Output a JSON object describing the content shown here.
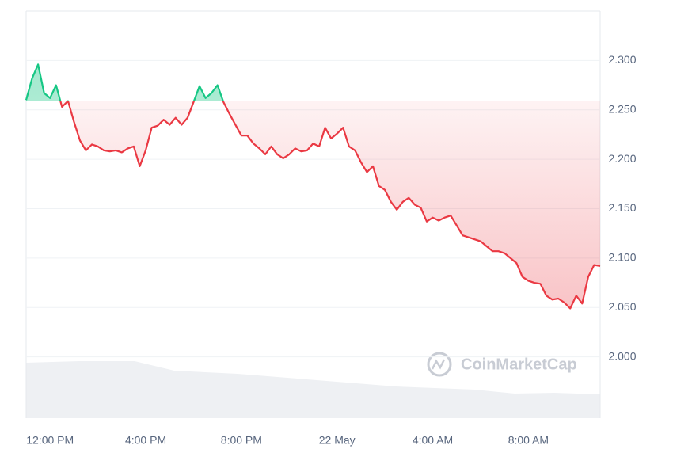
{
  "chart_data": {
    "type": "line",
    "watermark": "CoinMarketCap",
    "categories": [
      null,
      null,
      null,
      null,
      "12:00 PM",
      null,
      null,
      null,
      null,
      null,
      null,
      null,
      null,
      null,
      null,
      null,
      null,
      null,
      null,
      null,
      "4:00 PM",
      null,
      null,
      null,
      null,
      null,
      null,
      null,
      null,
      null,
      null,
      null,
      null,
      null,
      null,
      null,
      "8:00 PM",
      null,
      null,
      null,
      null,
      null,
      null,
      null,
      null,
      null,
      null,
      null,
      null,
      null,
      null,
      null,
      "22 May",
      null,
      null,
      null,
      null,
      null,
      null,
      null,
      null,
      null,
      null,
      null,
      null,
      null,
      null,
      null,
      "4:00 AM",
      null,
      null,
      null,
      null,
      null,
      null,
      null,
      null,
      null,
      null,
      null,
      null,
      null,
      null,
      null,
      "8:00 AM",
      null,
      null,
      null,
      null,
      null,
      null,
      null,
      null,
      null,
      null,
      null,
      null
    ],
    "values": [
      2.26,
      2.282,
      2.296,
      2.267,
      2.262,
      2.275,
      2.253,
      2.259,
      2.238,
      2.219,
      2.209,
      2.215,
      2.213,
      2.209,
      2.208,
      2.209,
      2.207,
      2.211,
      2.213,
      2.193,
      2.209,
      2.232,
      2.234,
      2.24,
      2.235,
      2.242,
      2.235,
      2.242,
      2.258,
      2.274,
      2.262,
      2.267,
      2.275,
      2.258,
      2.246,
      2.235,
      2.224,
      2.224,
      2.216,
      2.211,
      2.205,
      2.213,
      2.205,
      2.201,
      2.205,
      2.211,
      2.208,
      2.209,
      2.216,
      2.213,
      2.232,
      2.221,
      2.226,
      2.232,
      2.213,
      2.209,
      2.197,
      2.187,
      2.193,
      2.173,
      2.169,
      2.157,
      2.149,
      2.157,
      2.161,
      2.154,
      2.151,
      2.137,
      2.141,
      2.138,
      2.141,
      2.143,
      2.133,
      2.123,
      2.121,
      2.119,
      2.117,
      2.112,
      2.107,
      2.107,
      2.105,
      2.1,
      2.095,
      2.081,
      2.077,
      2.075,
      2.074,
      2.062,
      2.058,
      2.059,
      2.055,
      2.049,
      2.062,
      2.054,
      2.081,
      2.093,
      2.092
    ],
    "baseline": 2.259,
    "up_color": "#16c784",
    "down_color": "#ea3943",
    "ylim": [
      1.938,
      2.35
    ],
    "yticks": [
      {
        "value": 2.0,
        "label": "2.000"
      },
      {
        "value": 2.05,
        "label": "2.050"
      },
      {
        "value": 2.1,
        "label": "2.100"
      },
      {
        "value": 2.15,
        "label": "2.150"
      },
      {
        "value": 2.2,
        "label": "2.200"
      },
      {
        "value": 2.25,
        "label": "2.250"
      },
      {
        "value": 2.3,
        "label": "2.300"
      }
    ],
    "grid": true
  }
}
